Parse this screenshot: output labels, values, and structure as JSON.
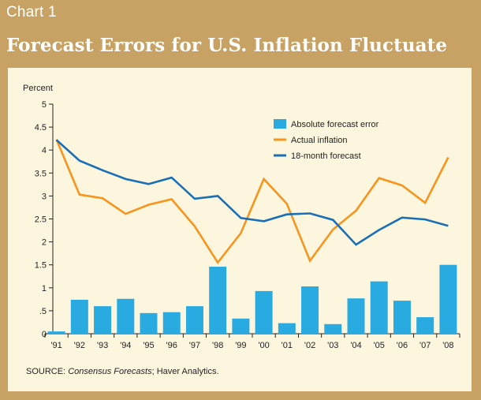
{
  "header": {
    "label": "Chart 1",
    "title": "Forecast Errors for U.S. Inflation Fluctuate"
  },
  "colors": {
    "frame": "#c7a264",
    "panel": "#fdf6df",
    "bar": "#29abe2",
    "actual": "#f7941d",
    "forecast": "#1a6fb5"
  },
  "source": {
    "prefix": "SOURCE: ",
    "italic": "Consensus Forecasts",
    "suffix": "; Haver Analytics."
  },
  "chart_data": {
    "type": "bar",
    "ylabel": "Percent",
    "ylim": [
      0,
      5
    ],
    "y_ticks": [
      "0",
      ".5",
      "1",
      "1.5",
      "2",
      "2.5",
      "3",
      "3.5",
      "4",
      "4.5",
      "5"
    ],
    "categories": [
      "'91",
      "'92",
      "'93",
      "'94",
      "'95",
      "'96",
      "'97",
      "'98",
      "'99",
      "'00",
      "'01",
      "'02",
      "'03",
      "'04",
      "'05",
      "'06",
      "'07",
      "'08"
    ],
    "legend_position": "top-right",
    "series": [
      {
        "name": "Absolute forecast error",
        "kind": "bar",
        "values": [
          0.05,
          0.74,
          0.6,
          0.76,
          0.45,
          0.47,
          0.6,
          1.46,
          0.33,
          0.93,
          0.23,
          1.03,
          0.21,
          0.77,
          1.14,
          0.72,
          0.36,
          1.5
        ]
      },
      {
        "name": "Actual inflation",
        "kind": "line",
        "values": [
          4.23,
          3.03,
          2.95,
          2.61,
          2.81,
          2.93,
          2.34,
          1.55,
          2.19,
          3.37,
          2.83,
          1.59,
          2.27,
          2.68,
          3.39,
          3.23,
          2.85,
          3.84
        ]
      },
      {
        "name": "18-month forecast",
        "kind": "line",
        "values": [
          4.22,
          3.77,
          3.56,
          3.37,
          3.26,
          3.4,
          2.94,
          3.0,
          2.52,
          2.45,
          2.6,
          2.62,
          2.48,
          1.94,
          2.26,
          2.53,
          2.49,
          2.35
        ]
      }
    ]
  }
}
